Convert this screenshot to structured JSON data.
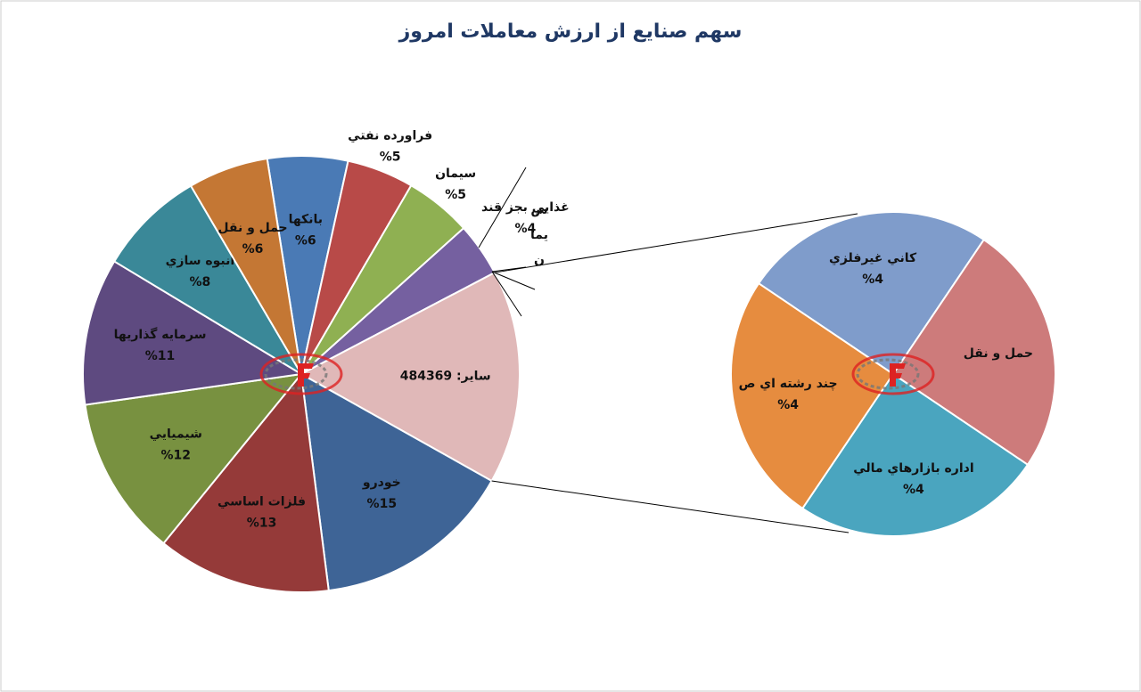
{
  "chart_data": [
    {
      "type": "pie",
      "title": "سهم صنايع از ارزش معاملات امروز",
      "categories": [
        "بانکها",
        "فراورده نفتي",
        "سيمان",
        "غذايي بجز قند",
        "ساير: 484369",
        "خودرو",
        "فلزات اساسي",
        "شيميايي",
        "سرمايه گذاريها",
        "انبوه سازي",
        "حمل و نقل"
      ],
      "values": [
        6,
        5,
        5,
        4,
        16,
        15,
        13,
        12,
        11,
        8,
        6
      ],
      "value_labels": [
        "%6",
        "%5",
        "%5",
        "%4",
        null,
        "%15",
        "%13",
        "%12",
        "%11",
        "%8",
        "%6"
      ],
      "colors": [
        "#4a7ab5",
        "#b84a48",
        "#8fb052",
        "#7560a0",
        "#e0b8b8",
        "#3e6496",
        "#953a39",
        "#789140",
        "#5e4a80",
        "#3a8898",
        "#c47734"
      ],
      "annotation": [
        "س",
        "يما",
        "ن"
      ]
    },
    {
      "type": "pie",
      "categories": [
        "کاني غيرفلزي",
        "حمل و نقل",
        "اداره بازارهاي مالي",
        "چند رشته اي ص"
      ],
      "values": [
        4,
        4,
        4,
        4
      ],
      "value_labels": [
        "%4",
        null,
        "%4",
        "%4"
      ],
      "colors": [
        "#7f9ccb",
        "#cd7b7b",
        "#4aa5bf",
        "#e68c3f"
      ]
    }
  ]
}
